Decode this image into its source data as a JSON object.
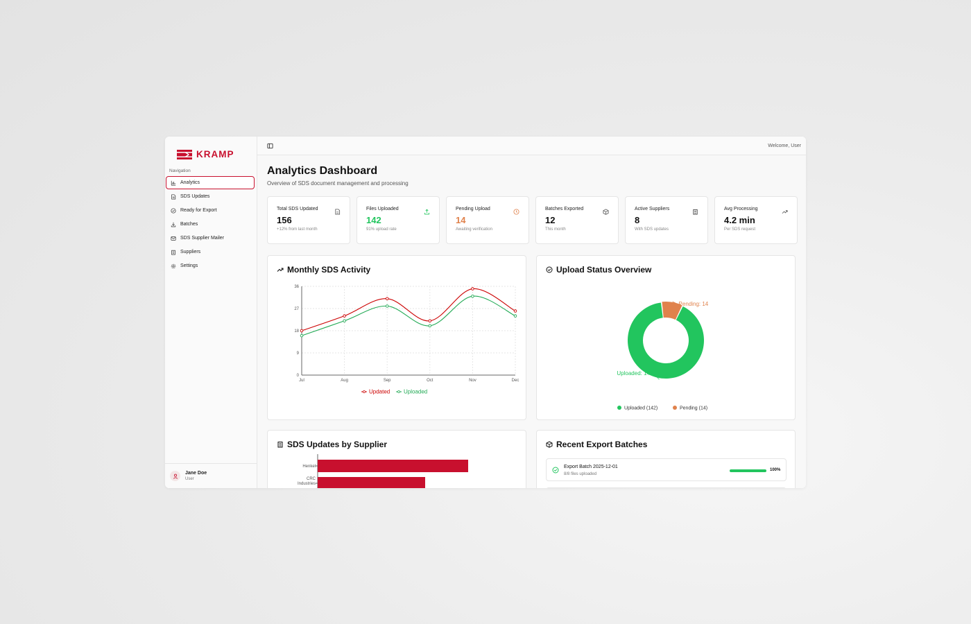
{
  "brand": {
    "name": "KRAMP",
    "color": "#c8102e"
  },
  "sidebar": {
    "heading": "Navigation",
    "items": [
      {
        "label": "Analytics",
        "icon": "bar-chart-icon",
        "active": true
      },
      {
        "label": "SDS Updates",
        "icon": "file-text-icon"
      },
      {
        "label": "Ready for Export",
        "icon": "check-circle-icon"
      },
      {
        "label": "Batches",
        "icon": "download-icon"
      },
      {
        "label": "SDS Supplier Mailer",
        "icon": "mail-icon"
      },
      {
        "label": "Suppliers",
        "icon": "building-icon"
      },
      {
        "label": "Settings",
        "icon": "gear-icon"
      }
    ],
    "user": {
      "name": "Jane Doe",
      "role": "User"
    }
  },
  "topbar": {
    "welcome": "Welcome, User"
  },
  "page": {
    "title": "Analytics Dashboard",
    "subtitle": "Overview of SDS document management and processing"
  },
  "stats": [
    {
      "label": "Total SDS Updated",
      "value": "156",
      "sub": "+12% from last month",
      "icon": "file-icon",
      "color": "#111111"
    },
    {
      "label": "Files Uploaded",
      "value": "142",
      "sub": "91% upload rate",
      "icon": "upload-icon",
      "color": "#22c55e"
    },
    {
      "label": "Pending Upload",
      "value": "14",
      "sub": "Awaiting verification",
      "icon": "clock-icon",
      "color": "#e0824c"
    },
    {
      "label": "Batches Exported",
      "value": "12",
      "sub": "This month",
      "icon": "package-icon",
      "color": "#111111"
    },
    {
      "label": "Active Suppliers",
      "value": "8",
      "sub": "With SDS updates",
      "icon": "building-icon",
      "color": "#111111"
    },
    {
      "label": "Avg Processing",
      "value": "4.2 min",
      "sub": "Per SDS request",
      "icon": "trending-up-icon",
      "color": "#111111"
    }
  ],
  "panels": {
    "monthly": {
      "title": "Monthly SDS Activity"
    },
    "status": {
      "title": "Upload Status Overview"
    },
    "supplier": {
      "title": "SDS Updates by Supplier"
    },
    "batches": {
      "title": "Recent Export Batches",
      "rows": [
        {
          "name": "Export Batch 2025-12-01",
          "sub": "8/8 files uploaded",
          "progress": 1.0,
          "pct": "100%"
        }
      ]
    }
  },
  "chart_data": [
    {
      "type": "line",
      "categories": [
        "Jul",
        "Aug",
        "Sep",
        "Oct",
        "Nov",
        "Dec"
      ],
      "ylim": [
        0,
        36
      ],
      "yticks": [
        "0",
        "9",
        "18",
        "27",
        "36"
      ],
      "series": [
        {
          "name": "Updated",
          "values": [
            18,
            24,
            31,
            22,
            35,
            26
          ],
          "color": "#cc0000"
        },
        {
          "name": "Uploaded",
          "values": [
            16,
            22,
            28,
            20,
            32,
            24
          ],
          "color": "#22aa55"
        }
      ],
      "legend": "bottom"
    },
    {
      "type": "pie",
      "slices": [
        {
          "name": "Uploaded",
          "value": 142,
          "color": "#22c55e",
          "label": "Uploaded: 142",
          "legend": "Uploaded (142)"
        },
        {
          "name": "Pending",
          "value": 14,
          "color": "#e0824c",
          "label": "Pending: 14",
          "legend": "Pending (14)"
        }
      ],
      "legend": "bottom"
    },
    {
      "type": "bar",
      "orientation": "horizontal",
      "categories": [
        "Henkel",
        "CRC Industries"
      ],
      "values": [
        28,
        20
      ],
      "color": "#c8102e"
    }
  ]
}
